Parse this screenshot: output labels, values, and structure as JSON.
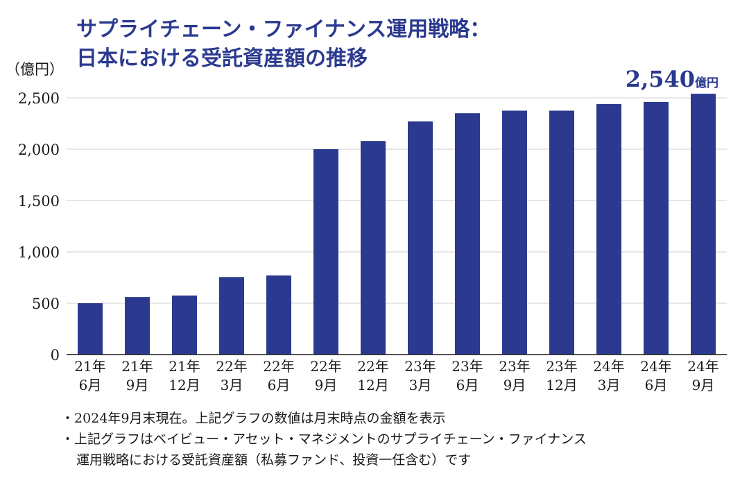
{
  "header": {
    "title_line1": "サプライチェーン・ファイナンス運用戦略：",
    "title_line2": "日本における受託資産額の推移",
    "unit_label": "（億円）"
  },
  "chart_data": {
    "type": "bar",
    "title": "サプライチェーン・ファイナンス運用戦略：日本における受託資産額の推移",
    "ylabel": "（億円）",
    "xlabel": "",
    "categories": [
      [
        "21年",
        "6月"
      ],
      [
        "21年",
        "9月"
      ],
      [
        "21年",
        "12月"
      ],
      [
        "22年",
        "3月"
      ],
      [
        "22年",
        "6月"
      ],
      [
        "22年",
        "9月"
      ],
      [
        "22年",
        "12月"
      ],
      [
        "23年",
        "3月"
      ],
      [
        "23年",
        "6月"
      ],
      [
        "23年",
        "9月"
      ],
      [
        "23年",
        "12月"
      ],
      [
        "24年",
        "3月"
      ],
      [
        "24年",
        "6月"
      ],
      [
        "24年",
        "9月"
      ]
    ],
    "values": [
      500,
      560,
      575,
      755,
      770,
      2000,
      2080,
      2270,
      2350,
      2375,
      2375,
      2440,
      2460,
      2540
    ],
    "ylim": [
      0,
      2500
    ],
    "yticks": [
      "0",
      "500",
      "1,000",
      "1,500",
      "2,000",
      "2,500"
    ],
    "ytick_values": [
      0,
      500,
      1000,
      1500,
      2000,
      2500
    ],
    "grid": true,
    "bar_color": "#2b3a8f",
    "callout": {
      "value_text": "2,540",
      "unit_text": "億円"
    }
  },
  "notes": {
    "line1": "・2024年9月末現在。上記グラフの数値は月末時点の金額を表示",
    "line2": "・上記グラフはベイビュー・アセット・マネジメントのサプライチェーン・ファイナンス",
    "line3": "運用戦略における受託資産額（私募ファンド、投資一任含む）です"
  }
}
